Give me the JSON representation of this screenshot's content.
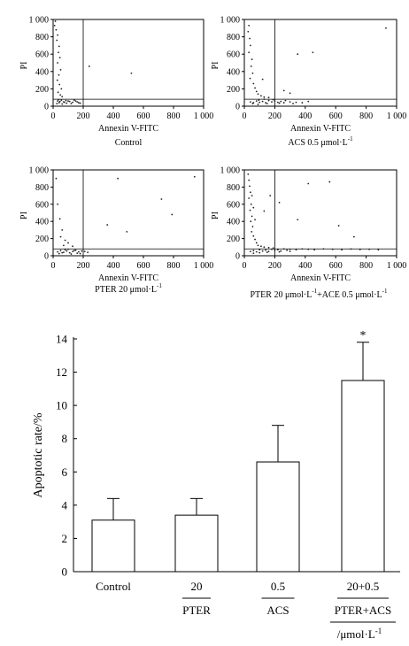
{
  "chart_data": [
    {
      "type": "scatter",
      "xlabel": "Annexin V-FITC",
      "ylabel": "PI",
      "caption": "Control",
      "xlim": [
        0,
        1000
      ],
      "ylim": [
        0,
        1000
      ],
      "xticks": [
        "0",
        "200",
        "400",
        "600",
        "800",
        "1 000"
      ],
      "yticks": [
        "0",
        "200",
        "400",
        "600",
        "800",
        "1 000"
      ],
      "gate": {
        "x": 200,
        "y": 80
      },
      "points": [
        [
          30,
          60
        ],
        [
          40,
          40
        ],
        [
          55,
          70
        ],
        [
          70,
          50
        ],
        [
          90,
          35
        ],
        [
          110,
          55
        ],
        [
          130,
          45
        ],
        [
          150,
          60
        ],
        [
          170,
          40
        ],
        [
          25,
          30
        ],
        [
          60,
          25
        ],
        [
          85,
          65
        ],
        [
          120,
          30
        ],
        [
          140,
          70
        ],
        [
          160,
          50
        ],
        [
          45,
          55
        ],
        [
          75,
          45
        ],
        [
          100,
          60
        ],
        [
          180,
          35
        ],
        [
          35,
          75
        ],
        [
          20,
          880
        ],
        [
          30,
          820
        ],
        [
          25,
          760
        ],
        [
          40,
          690
        ],
        [
          35,
          620
        ],
        [
          45,
          560
        ],
        [
          30,
          500
        ],
        [
          50,
          420
        ],
        [
          38,
          360
        ],
        [
          28,
          300
        ],
        [
          42,
          250
        ],
        [
          55,
          200
        ],
        [
          33,
          160
        ],
        [
          48,
          130
        ],
        [
          60,
          110
        ],
        [
          240,
          460
        ],
        [
          520,
          380
        ],
        [
          10,
          930
        ],
        [
          15,
          980
        ]
      ]
    },
    {
      "type": "scatter",
      "xlabel": "Annexin V-FITC",
      "ylabel": "PI",
      "caption": "ACS 0.5 μmol·L",
      "caption_sup": "-1",
      "xlim": [
        0,
        1000
      ],
      "ylim": [
        0,
        1000
      ],
      "xticks": [
        "0",
        "200",
        "400",
        "600",
        "800",
        "1 000"
      ],
      "yticks": [
        "0",
        "200",
        "400",
        "600",
        "800",
        "1 000"
      ],
      "gate": {
        "x": 200,
        "y": 80
      },
      "points": [
        [
          40,
          50
        ],
        [
          60,
          40
        ],
        [
          80,
          60
        ],
        [
          100,
          45
        ],
        [
          120,
          55
        ],
        [
          140,
          40
        ],
        [
          160,
          65
        ],
        [
          180,
          50
        ],
        [
          200,
          60
        ],
        [
          220,
          45
        ],
        [
          240,
          55
        ],
        [
          260,
          40
        ],
        [
          300,
          50
        ],
        [
          340,
          45
        ],
        [
          380,
          40
        ],
        [
          420,
          55
        ],
        [
          55,
          30
        ],
        [
          95,
          70
        ],
        [
          150,
          30
        ],
        [
          190,
          75
        ],
        [
          230,
          35
        ],
        [
          270,
          65
        ],
        [
          320,
          30
        ],
        [
          90,
          20
        ],
        [
          130,
          80
        ],
        [
          30,
          930
        ],
        [
          25,
          860
        ],
        [
          35,
          780
        ],
        [
          40,
          700
        ],
        [
          30,
          620
        ],
        [
          50,
          540
        ],
        [
          45,
          460
        ],
        [
          55,
          380
        ],
        [
          38,
          320
        ],
        [
          60,
          260
        ],
        [
          70,
          210
        ],
        [
          80,
          170
        ],
        [
          90,
          140
        ],
        [
          110,
          120
        ],
        [
          130,
          105
        ],
        [
          160,
          100
        ],
        [
          350,
          600
        ],
        [
          450,
          620
        ],
        [
          120,
          310
        ],
        [
          260,
          180
        ],
        [
          300,
          150
        ],
        [
          930,
          900
        ]
      ]
    },
    {
      "type": "scatter",
      "xlabel": "Annexin V-FITC",
      "ylabel": "PI",
      "caption": "PTER 20 μmol·L",
      "caption_sup": "-1",
      "xlim": [
        0,
        1000
      ],
      "ylim": [
        0,
        1000
      ],
      "xticks": [
        "0",
        "200",
        "400",
        "600",
        "800",
        "1 000"
      ],
      "yticks": [
        "0",
        "200",
        "400",
        "600",
        "800",
        "1 000"
      ],
      "gate": {
        "x": 200,
        "y": 80
      },
      "points": [
        [
          30,
          45
        ],
        [
          50,
          60
        ],
        [
          70,
          40
        ],
        [
          90,
          55
        ],
        [
          110,
          35
        ],
        [
          130,
          50
        ],
        [
          150,
          65
        ],
        [
          170,
          45
        ],
        [
          190,
          55
        ],
        [
          40,
          25
        ],
        [
          80,
          70
        ],
        [
          120,
          20
        ],
        [
          160,
          30
        ],
        [
          60,
          35
        ],
        [
          100,
          75
        ],
        [
          140,
          60
        ],
        [
          180,
          25
        ],
        [
          210,
          50
        ],
        [
          230,
          40
        ],
        [
          20,
          900
        ],
        [
          30,
          600
        ],
        [
          45,
          430
        ],
        [
          60,
          300
        ],
        [
          50,
          220
        ],
        [
          80,
          180
        ],
        [
          100,
          150
        ],
        [
          70,
          120
        ],
        [
          130,
          110
        ],
        [
          360,
          360
        ],
        [
          790,
          480
        ],
        [
          490,
          280
        ],
        [
          940,
          920
        ],
        [
          430,
          900
        ],
        [
          720,
          660
        ]
      ]
    },
    {
      "type": "scatter",
      "xlabel": "Annexin V-FITC",
      "ylabel": "PI",
      "caption": "PTER 20 μmol·L",
      "caption_sup": "-1",
      "caption2": "+ACE 0.5 μmol·L",
      "caption2_sup": "-1",
      "xlim": [
        0,
        1000
      ],
      "ylim": [
        0,
        1000
      ],
      "xticks": [
        "0",
        "200",
        "400",
        "600",
        "800",
        "1 000"
      ],
      "yticks": [
        "0",
        "200",
        "400",
        "600",
        "800",
        "1 000"
      ],
      "gate": {
        "x": 200,
        "y": 80
      },
      "points": [
        [
          40,
          50
        ],
        [
          60,
          60
        ],
        [
          80,
          45
        ],
        [
          100,
          70
        ],
        [
          120,
          55
        ],
        [
          140,
          65
        ],
        [
          160,
          50
        ],
        [
          180,
          75
        ],
        [
          200,
          60
        ],
        [
          220,
          70
        ],
        [
          240,
          55
        ],
        [
          260,
          80
        ],
        [
          280,
          65
        ],
        [
          300,
          75
        ],
        [
          340,
          70
        ],
        [
          380,
          80
        ],
        [
          420,
          75
        ],
        [
          460,
          70
        ],
        [
          520,
          80
        ],
        [
          580,
          75
        ],
        [
          640,
          70
        ],
        [
          700,
          78
        ],
        [
          760,
          72
        ],
        [
          820,
          75
        ],
        [
          880,
          70
        ],
        [
          60,
          30
        ],
        [
          100,
          35
        ],
        [
          150,
          40
        ],
        [
          230,
          45
        ],
        [
          300,
          50
        ],
        [
          25,
          950
        ],
        [
          30,
          880
        ],
        [
          35,
          810
        ],
        [
          40,
          740
        ],
        [
          30,
          670
        ],
        [
          45,
          600
        ],
        [
          38,
          530
        ],
        [
          50,
          460
        ],
        [
          42,
          400
        ],
        [
          55,
          340
        ],
        [
          48,
          280
        ],
        [
          60,
          230
        ],
        [
          70,
          190
        ],
        [
          80,
          150
        ],
        [
          90,
          120
        ],
        [
          110,
          110
        ],
        [
          130,
          100
        ],
        [
          160,
          95
        ],
        [
          190,
          90
        ],
        [
          50,
          700
        ],
        [
          60,
          560
        ],
        [
          70,
          420
        ],
        [
          420,
          840
        ],
        [
          560,
          860
        ],
        [
          350,
          420
        ],
        [
          620,
          350
        ],
        [
          720,
          220
        ],
        [
          170,
          700
        ],
        [
          230,
          620
        ],
        [
          130,
          520
        ]
      ]
    },
    {
      "type": "bar",
      "ylabel": "Apoptotic rate/%",
      "ylim": [
        0,
        14
      ],
      "yticks": [
        "0",
        "2",
        "4",
        "6",
        "8",
        "10",
        "12",
        "14"
      ],
      "categories": [
        "Control",
        "20",
        "0.5",
        "20+0.5"
      ],
      "sublabels": [
        "",
        "PTER",
        "ACS",
        "PTER+ACS"
      ],
      "unit_label": "/μmol·L",
      "unit_sup": "-1",
      "values": [
        3.1,
        3.4,
        6.6,
        11.5
      ],
      "errors": [
        1.3,
        1.0,
        2.2,
        2.3
      ],
      "significance": [
        "",
        "",
        "",
        "*"
      ]
    }
  ]
}
